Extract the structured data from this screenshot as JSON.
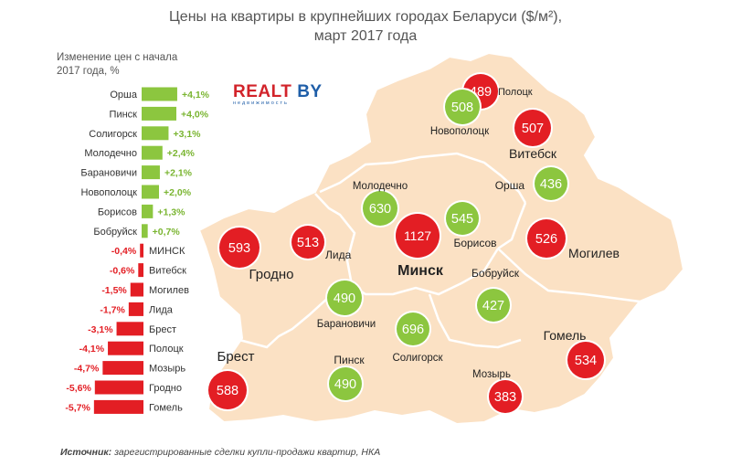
{
  "title": {
    "line1": "Цены на квартиры в крупнейших городах Беларуси ($/м²),",
    "line2": "март 2017 года"
  },
  "bar_subtitle": {
    "line1": "Изменение цен с начала",
    "line2": "2017 года, %"
  },
  "logo": {
    "realt": "REALT",
    "by": "BY",
    "tagline": "недвижимость"
  },
  "source": {
    "label": "Источник:",
    "text": "зарегистрированные сделки купли-продажи квартир, НКА"
  },
  "colors": {
    "positive": "#8cc63f",
    "negative": "#e31e24",
    "map_fill": "#fbe1c4",
    "map_stroke": "#ffffff",
    "region_line": "#ffffff",
    "positive_text": "#7ab531",
    "negative_text": "#e31e24"
  },
  "chart_data": {
    "type": "bar",
    "orientation": "horizontal",
    "categories": [
      "Орша",
      "Пинск",
      "Солигорск",
      "Молодечно",
      "Барановичи",
      "Новополоцк",
      "Борисов",
      "Бобруйск",
      "МИНСК",
      "Витебск",
      "Могилев",
      "Лида",
      "Брест",
      "Полоцк",
      "Мозырь",
      "Гродно",
      "Гомель"
    ],
    "values": [
      4.1,
      4.0,
      3.1,
      2.4,
      2.1,
      2.0,
      1.3,
      0.7,
      -0.4,
      -0.6,
      -1.5,
      -1.7,
      -3.1,
      -4.1,
      -4.7,
      -5.6,
      -5.7
    ],
    "labels": [
      "+4,1%",
      "+4,0%",
      "+3,1%",
      "+2,4%",
      "+2,1%",
      "+2,0%",
      "+1,3%",
      "+0,7%",
      "-0,4%",
      "-0,6%",
      "-1,5%",
      "-1,7%",
      "-3,1%",
      "-4,1%",
      "-4,7%",
      "-5,6%",
      "-5,7%"
    ]
  },
  "map": {
    "cities": [
      {
        "name": "Полоцк",
        "price": "489",
        "status": "negative"
      },
      {
        "name": "Новополоцк",
        "price": "508",
        "status": "positive"
      },
      {
        "name": "Витебск",
        "price": "507",
        "status": "negative"
      },
      {
        "name": "Орша",
        "price": "436",
        "status": "positive"
      },
      {
        "name": "Молодечно",
        "price": "630",
        "status": "positive"
      },
      {
        "name": "Борисов",
        "price": "545",
        "status": "positive"
      },
      {
        "name": "Минск",
        "price": "1127",
        "status": "negative"
      },
      {
        "name": "Лида",
        "price": "513",
        "status": "negative"
      },
      {
        "name": "Гродно",
        "price": "593",
        "status": "negative"
      },
      {
        "name": "Могилев",
        "price": "526",
        "status": "negative"
      },
      {
        "name": "Бобруйск",
        "price": "427",
        "status": "positive"
      },
      {
        "name": "Барановичи",
        "price": "490",
        "status": "positive"
      },
      {
        "name": "Солигорск",
        "price": "696",
        "status": "positive"
      },
      {
        "name": "Брест",
        "price": "588",
        "status": "negative"
      },
      {
        "name": "Пинск",
        "price": "490",
        "status": "positive"
      },
      {
        "name": "Мозырь",
        "price": "383",
        "status": "negative"
      },
      {
        "name": "Гомель",
        "price": "534",
        "status": "negative"
      }
    ]
  }
}
